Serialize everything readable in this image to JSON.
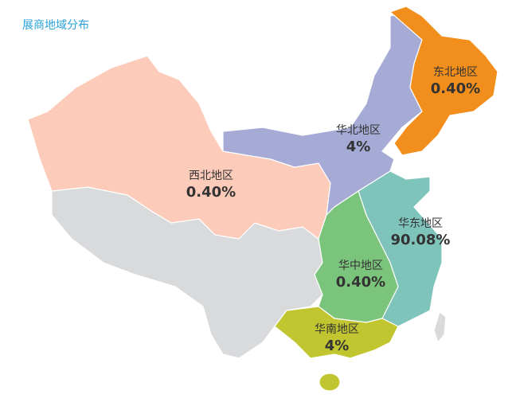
{
  "header": {
    "title": "展商地域分布"
  },
  "regions": [
    {
      "name": "东北地区",
      "share": "0.40%",
      "color": "#f28e1c"
    },
    {
      "name": "华北地区",
      "share": "4%",
      "color": "#a6abd6"
    },
    {
      "name": "西北地区",
      "share": "0.40%",
      "color": "#fccbb9"
    },
    {
      "name": "华东地区",
      "share": "90.08%",
      "color": "#7fc4bb"
    },
    {
      "name": "华中地区",
      "share": "0.40%",
      "color": "#7bc47b"
    },
    {
      "name": "华南地区",
      "share": "4%",
      "color": "#c1c52f"
    }
  ]
}
